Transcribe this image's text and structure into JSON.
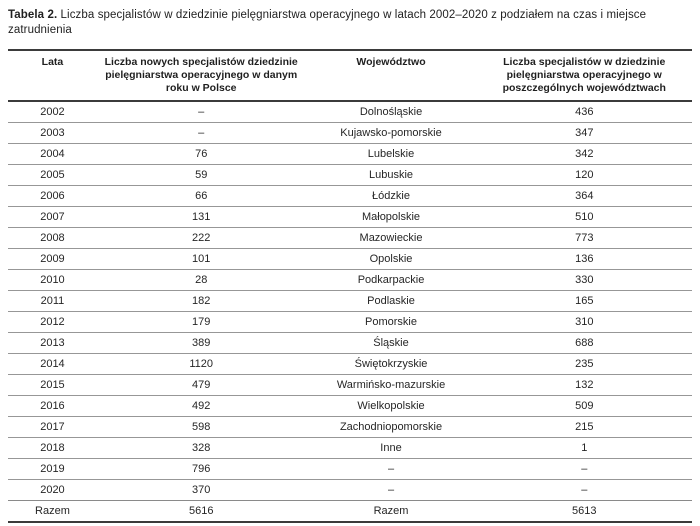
{
  "title": {
    "label": "Tabela 2.",
    "text": " Liczba specjalistów w dziedzinie pielęgniarstwa operacyjnego w latach 2002–2020 z podziałem na czas i miejsce zatrudnienia"
  },
  "table": {
    "columns": [
      "Lata",
      "Liczba nowych specjalistów dziedzinie pielęgniarstwa operacyjnego w danym roku w Polsce",
      "Województwo",
      "Liczba specjalistów w dziedzinie pielęgniarstwa operacyjnego w poszczególnych województwach"
    ],
    "rows": [
      [
        "2002",
        "–",
        "Dolnośląskie",
        "436"
      ],
      [
        "2003",
        "–",
        "Kujawsko-pomorskie",
        "347"
      ],
      [
        "2004",
        "76",
        "Lubelskie",
        "342"
      ],
      [
        "2005",
        "59",
        "Lubuskie",
        "120"
      ],
      [
        "2006",
        "66",
        "Łódzkie",
        "364"
      ],
      [
        "2007",
        "131",
        "Małopolskie",
        "510"
      ],
      [
        "2008",
        "222",
        "Mazowieckie",
        "773"
      ],
      [
        "2009",
        "101",
        "Opolskie",
        "136"
      ],
      [
        "2010",
        "28",
        "Podkarpackie",
        "330"
      ],
      [
        "2011",
        "182",
        "Podlaskie",
        "165"
      ],
      [
        "2012",
        "179",
        "Pomorskie",
        "310"
      ],
      [
        "2013",
        "389",
        "Śląskie",
        "688"
      ],
      [
        "2014",
        "1120",
        "Świętokrzyskie",
        "235"
      ],
      [
        "2015",
        "479",
        "Warmińsko-mazurskie",
        "132"
      ],
      [
        "2016",
        "492",
        "Wielkopolskie",
        "509"
      ],
      [
        "2017",
        "598",
        "Zachodniopomorskie",
        "215"
      ],
      [
        "2018",
        "328",
        "Inne",
        "1"
      ],
      [
        "2019",
        "796",
        "–",
        "–"
      ],
      [
        "2020",
        "370",
        "–",
        "–"
      ]
    ],
    "footer": [
      "Razem",
      "5616",
      "Razem",
      "5613"
    ]
  },
  "colors": {
    "rule_dark": "#3b3b3b",
    "rule_light": "#979797",
    "text": "#262626"
  }
}
